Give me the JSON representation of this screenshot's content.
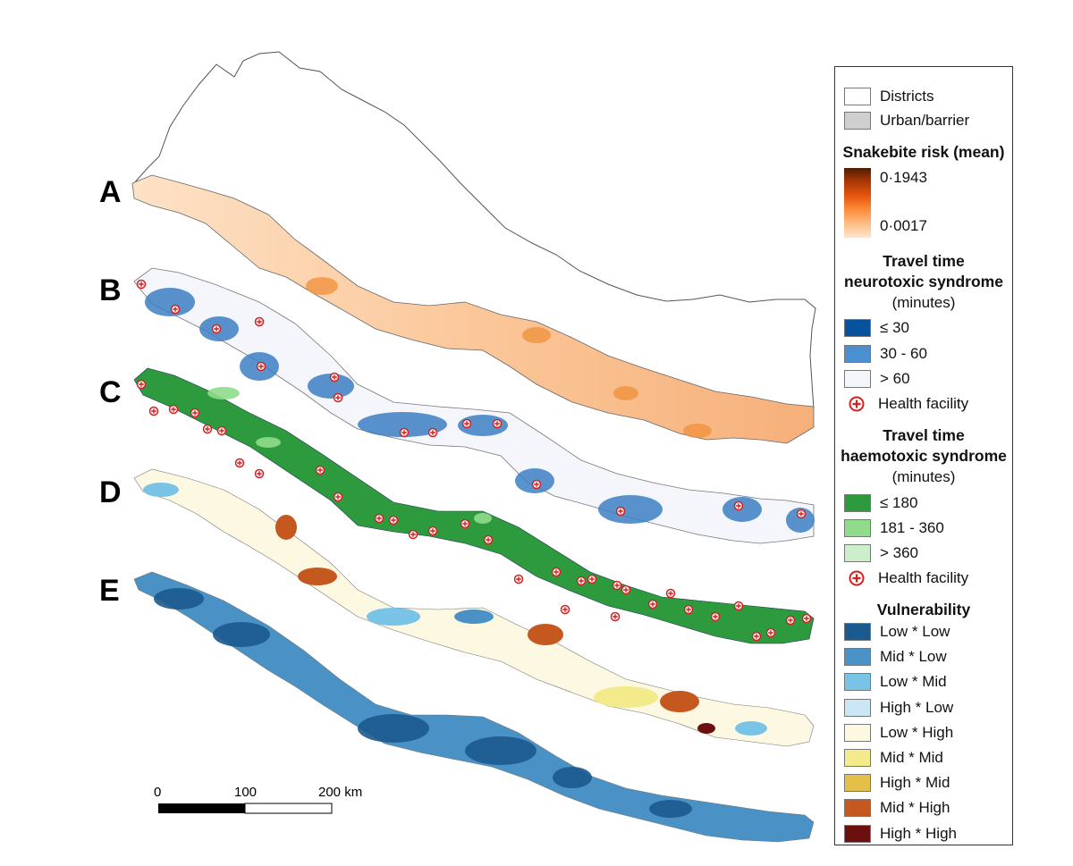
{
  "panels": [
    "A",
    "B",
    "C",
    "D",
    "E"
  ],
  "scalebar": {
    "ticks": [
      "0",
      "100",
      "200 km"
    ]
  },
  "legend": {
    "base": [
      {
        "label": "Districts",
        "color": "#ffffff"
      },
      {
        "label": "Urban/barrier",
        "color": "#cfcfcf"
      }
    ],
    "risk": {
      "title": "Snakebite risk (mean)",
      "max": "0·1943",
      "min": "0·0017"
    },
    "neuro": {
      "title1": "Travel time",
      "title2": "neurotoxic syndrome",
      "unit": "(minutes)",
      "items": [
        {
          "label": "≤ 30",
          "color": "#08519c"
        },
        {
          "label": "30 - 60",
          "color": "#4a90d0"
        },
        {
          "label": "> 60",
          "color": "#f4f6fb"
        }
      ],
      "facility": "Health facility"
    },
    "haemo": {
      "title1": "Travel time",
      "title2": "haemotoxic syndrome",
      "unit": "(minutes)",
      "items": [
        {
          "label": "≤ 180",
          "color": "#2e9a3e"
        },
        {
          "label": "181 - 360",
          "color": "#8fdc8a"
        },
        {
          "label": "> 360",
          "color": "#cdeecb"
        }
      ],
      "facility": "Health facility"
    },
    "vuln": {
      "title": "Vulnerability",
      "items": [
        {
          "label": "Low * Low",
          "color": "#1b5a8e"
        },
        {
          "label": "Mid * Low",
          "color": "#4a92c6"
        },
        {
          "label": "Low * Mid",
          "color": "#79c3e6"
        },
        {
          "label": "High * Low",
          "color": "#cce7f4"
        },
        {
          "label": "Low * High",
          "color": "#fdf8e2"
        },
        {
          "label": "Mid * Mid",
          "color": "#f3ea8c"
        },
        {
          "label": "High * Mid",
          "color": "#e3c048"
        },
        {
          "label": "Mid * High",
          "color": "#c4581e"
        },
        {
          "label": "High * High",
          "color": "#6b0f0f"
        }
      ]
    }
  }
}
